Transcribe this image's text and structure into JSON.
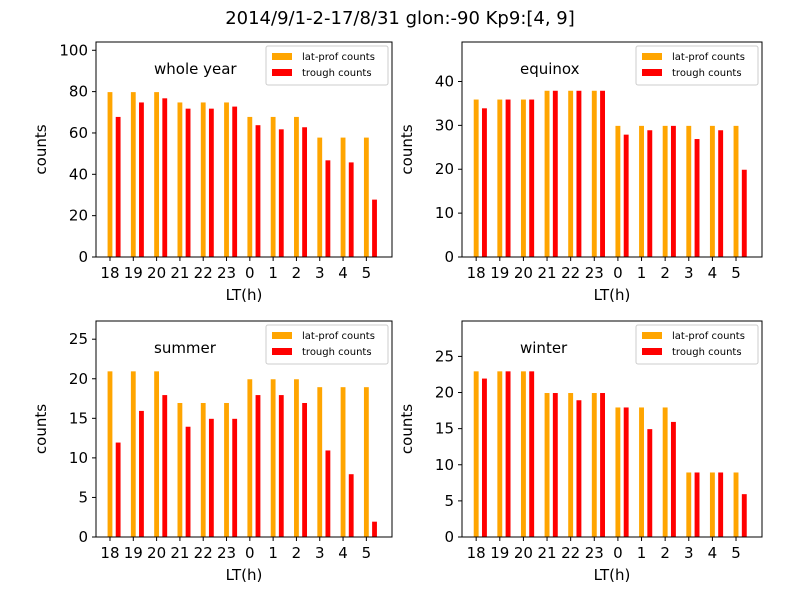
{
  "figure": {
    "title": "2014/9/1-2-17/8/31  glon:-90  Kp9:[4, 9]"
  },
  "colors": {
    "lat_prof": "#FFA500",
    "trough": "#FF0000"
  },
  "chart_data": [
    {
      "type": "bar",
      "annotation": "whole year",
      "categories": [
        "18",
        "19",
        "20",
        "21",
        "22",
        "23",
        "0",
        "1",
        "2",
        "3",
        "4",
        "5"
      ],
      "xlabel": "LT(h)",
      "ylabel": "counts",
      "ylim": [
        0,
        104
      ],
      "yticks": [
        0,
        20,
        40,
        60,
        80,
        100
      ],
      "series": [
        {
          "name": "lat-prof counts",
          "color": "#FFA500",
          "values": [
            80,
            80,
            80,
            75,
            75,
            75,
            68,
            68,
            68,
            58,
            58,
            58
          ]
        },
        {
          "name": "trough counts",
          "color": "#FF0000",
          "values": [
            68,
            75,
            77,
            72,
            72,
            73,
            64,
            62,
            63,
            47,
            46,
            28
          ]
        }
      ],
      "legend": "top-right"
    },
    {
      "type": "bar",
      "annotation": "equinox",
      "categories": [
        "18",
        "19",
        "20",
        "21",
        "22",
        "23",
        "0",
        "1",
        "2",
        "3",
        "4",
        "5"
      ],
      "xlabel": "LT(h)",
      "ylabel": "counts",
      "ylim": [
        0,
        49
      ],
      "yticks": [
        0,
        10,
        20,
        30,
        40
      ],
      "series": [
        {
          "name": "lat-prof counts",
          "color": "#FFA500",
          "values": [
            36,
            36,
            36,
            38,
            38,
            38,
            30,
            30,
            30,
            30,
            30,
            30
          ]
        },
        {
          "name": "trough counts",
          "color": "#FF0000",
          "values": [
            34,
            36,
            36,
            38,
            38,
            38,
            28,
            29,
            30,
            27,
            29,
            20
          ]
        }
      ],
      "legend": "top-right"
    },
    {
      "type": "bar",
      "annotation": "summer",
      "categories": [
        "18",
        "19",
        "20",
        "21",
        "22",
        "23",
        "0",
        "1",
        "2",
        "3",
        "4",
        "5"
      ],
      "xlabel": "LT(h)",
      "ylabel": "counts",
      "ylim": [
        0,
        27.3
      ],
      "yticks": [
        0,
        5,
        10,
        15,
        20,
        25
      ],
      "series": [
        {
          "name": "lat-prof counts",
          "color": "#FFA500",
          "values": [
            21,
            21,
            21,
            17,
            17,
            17,
            20,
            20,
            20,
            19,
            19,
            19
          ]
        },
        {
          "name": "trough counts",
          "color": "#FF0000",
          "values": [
            12,
            16,
            18,
            14,
            15,
            15,
            18,
            18,
            17,
            11,
            8,
            2
          ]
        }
      ],
      "legend": "top-right"
    },
    {
      "type": "bar",
      "annotation": "winter",
      "categories": [
        "18",
        "19",
        "20",
        "21",
        "22",
        "23",
        "0",
        "1",
        "2",
        "3",
        "4",
        "5"
      ],
      "xlabel": "LT(h)",
      "ylabel": "counts",
      "ylim": [
        0,
        29.9
      ],
      "yticks": [
        0,
        5,
        10,
        15,
        20,
        25
      ],
      "series": [
        {
          "name": "lat-prof counts",
          "color": "#FFA500",
          "values": [
            23,
            23,
            23,
            20,
            20,
            20,
            18,
            18,
            18,
            9,
            9,
            9
          ]
        },
        {
          "name": "trough counts",
          "color": "#FF0000",
          "values": [
            22,
            23,
            23,
            20,
            19,
            20,
            18,
            15,
            16,
            9,
            9,
            6
          ]
        }
      ],
      "legend": "top-right"
    }
  ]
}
